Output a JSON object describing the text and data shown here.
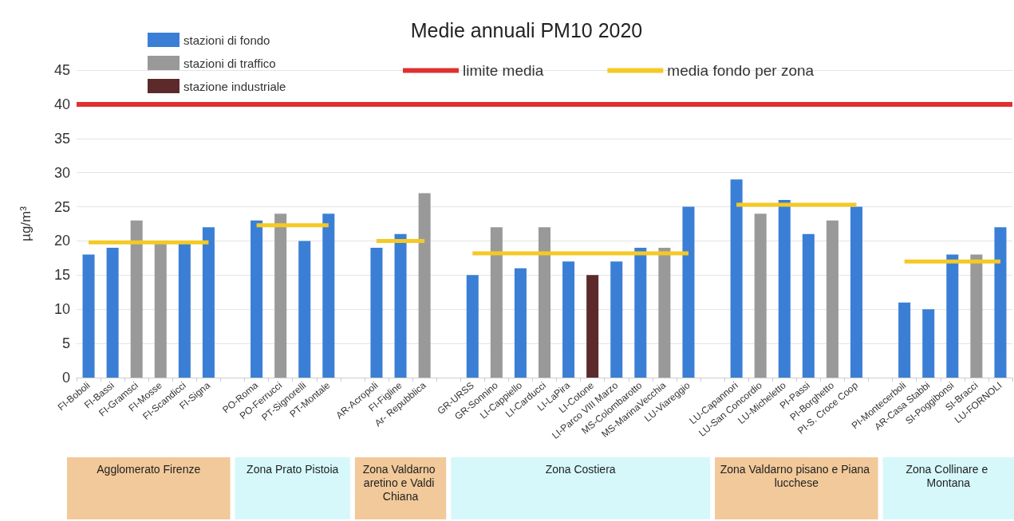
{
  "chart_data": {
    "type": "bar",
    "title": "Medie annuali PM10 2020",
    "ylabel": "µg/m³",
    "categories": [
      "FI-Boboli",
      "FI-Bassi",
      "FI-Gramsci",
      "FI-Mosse",
      "FI-Scandicci",
      "FI-Signa",
      null,
      "PO-Roma",
      "PO-Ferrucci",
      "PT-Signorelli",
      "PT-Montale",
      null,
      "AR-Acropoli",
      "FI-Figline",
      "Ar- Repubblica",
      null,
      "GR-URSS",
      "GR-Sonnino",
      "LI-Cappiello",
      "LI-Carducci",
      "LI-LaPira",
      "LI-Cotone",
      "LI-Parco VIII Marzo",
      "MS-Colombarotto",
      "MS-MarinaVecchia",
      "LU-Viareggio",
      null,
      "LU-Capannori",
      "LU-San Concordio",
      "LU-Micheletto",
      "PI-Passi",
      "PI-Borghetto",
      "PI-S. Croce Coop",
      null,
      "PI-Montecerboli",
      "AR-Casa Stabbi",
      "SI-Poggibonsi",
      "SI-Bracci",
      "LU-FORNOLI"
    ],
    "stacked": true,
    "series": [
      {
        "name": "stazioni di fondo",
        "color": "#3a7fd5",
        "values": [
          18,
          19,
          null,
          null,
          19.6,
          22,
          null,
          23,
          null,
          20,
          24,
          null,
          19,
          21,
          null,
          null,
          15,
          null,
          16,
          null,
          17,
          null,
          17,
          19,
          null,
          25,
          null,
          29,
          null,
          26,
          21,
          null,
          25,
          null,
          11,
          10,
          18,
          null,
          22
        ]
      },
      {
        "name": "stazioni di traffico",
        "color": "#999999",
        "values": [
          null,
          null,
          23,
          19.6,
          null,
          null,
          null,
          null,
          24,
          null,
          null,
          null,
          null,
          null,
          27,
          null,
          null,
          22,
          null,
          22,
          null,
          null,
          null,
          null,
          19,
          null,
          null,
          null,
          24,
          null,
          null,
          23,
          null,
          null,
          null,
          null,
          null,
          18,
          null
        ]
      },
      {
        "name": "stazione industriale",
        "color": "#5c2a2a",
        "values": [
          null,
          null,
          null,
          null,
          null,
          null,
          null,
          null,
          null,
          null,
          null,
          null,
          null,
          null,
          null,
          null,
          null,
          null,
          null,
          null,
          null,
          15,
          null,
          null,
          null,
          null,
          null,
          null,
          null,
          null,
          null,
          null,
          null,
          null,
          null,
          null,
          null,
          null,
          null
        ]
      },
      {
        "name": "media fondo per zona",
        "type": "line",
        "color": "#f5c926",
        "values": [
          19.8,
          19.8,
          19.8,
          19.8,
          19.8,
          19.8,
          null,
          22.3,
          22.3,
          22.3,
          22.3,
          null,
          20,
          20,
          20,
          null,
          18.2,
          18.2,
          18.2,
          18.2,
          18.2,
          18.2,
          18.2,
          18.2,
          18.2,
          18.2,
          null,
          25.3,
          25.3,
          25.3,
          25.3,
          25.3,
          25.3,
          null,
          17,
          17,
          17,
          17,
          17
        ]
      }
    ],
    "ref_lines": [
      {
        "axis": "y",
        "value": 40,
        "label": "limite media",
        "color": "#e03030"
      }
    ],
    "ylim": [
      0,
      45
    ],
    "yticks": [
      0,
      5,
      10,
      15,
      20,
      25,
      30,
      35,
      40,
      45
    ],
    "grid": "y",
    "legend": "top",
    "marker": "none",
    "annotations": [
      "Agglomerato Firenze",
      "Zona Prato Pistoia",
      "Zona Valdarno aretino e Valdi Chiana",
      "Zona Costiera",
      "Zona Valdarno pisano e Piana lucchese",
      "Zona Collinare e Montana"
    ]
  }
}
